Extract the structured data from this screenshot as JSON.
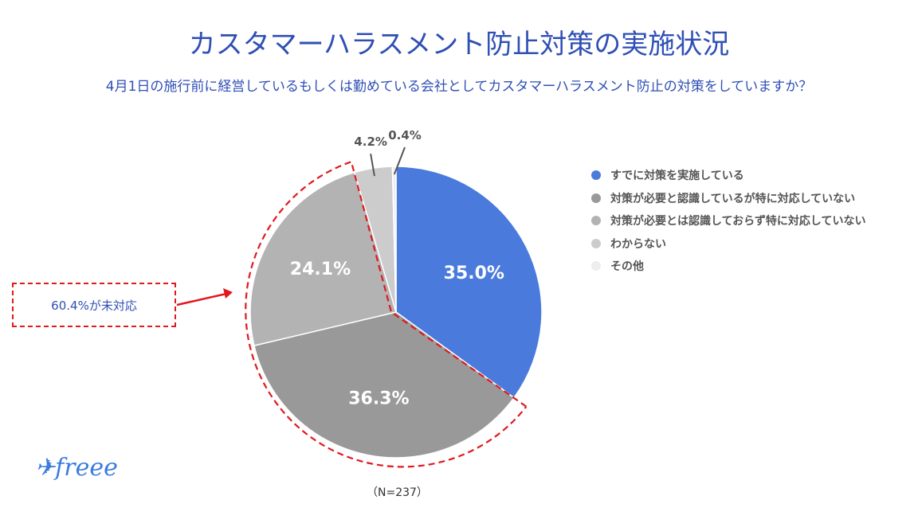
{
  "chart_data": {
    "type": "pie",
    "title": "カスタマーハラスメント防止対策の実施状況",
    "subtitle": "4月1日の施行前に経営しているもしくは勤めている会社としてカスタマーハラスメント防止の対策をしていますか？",
    "slices": [
      {
        "name": "すでに対策を実施している",
        "value": 35.0,
        "label": "35.0%",
        "color": "#4a7bdc"
      },
      {
        "name": "対策が必要と認識しているが特に対応していない",
        "value": 36.3,
        "label": "36.3%",
        "color": "#999999"
      },
      {
        "name": "対策が必要とは認識しておらず特に対応していない",
        "value": 24.1,
        "label": "24.1%",
        "color": "#b3b3b3"
      },
      {
        "name": "わからない",
        "value": 4.2,
        "label": "4.2%",
        "color": "#cccccc"
      },
      {
        "name": "その他",
        "value": 0.4,
        "label": "0.4%",
        "color": "#eeeeee"
      }
    ],
    "legend_position": "right",
    "annotation": "60.4%が未対応",
    "sample": "（N=237）"
  },
  "logo": "freee"
}
